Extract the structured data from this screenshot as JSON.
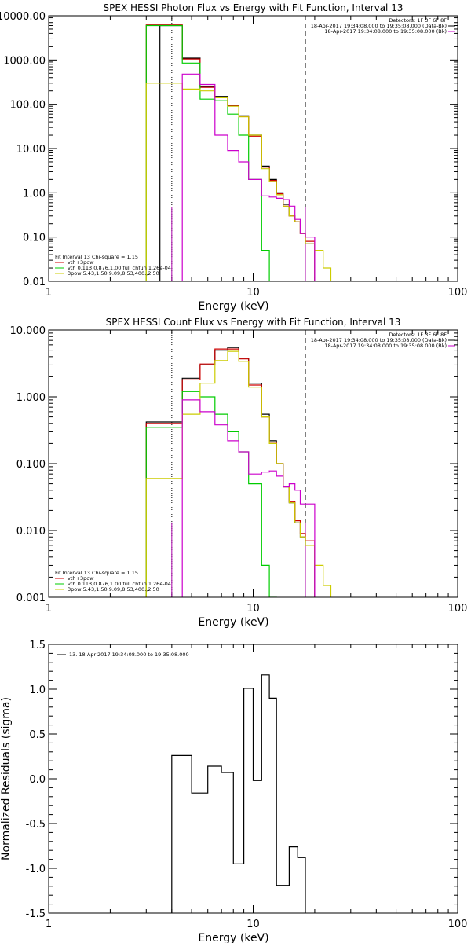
{
  "chart_data": [
    {
      "type": "line",
      "scale": "loglog",
      "title": "SPEX HESSI Photon Flux vs Energy with Fit Function, Interval 13",
      "xlabel": "Energy (keV)",
      "ylabel": "",
      "xlim": [
        1,
        100
      ],
      "ylim": [
        0.01,
        10000
      ],
      "x_ticks": [
        {
          "v": 1,
          "label": "1"
        },
        {
          "v": 10,
          "label": "10"
        },
        {
          "v": 100,
          "label": "100"
        }
      ],
      "y_ticks": [
        {
          "v": 0.01,
          "label": "0.01"
        },
        {
          "v": 0.1,
          "label": "0.10"
        },
        {
          "v": 1,
          "label": "1.00"
        },
        {
          "v": 10,
          "label": "10.00"
        },
        {
          "v": 100,
          "label": "100.00"
        },
        {
          "v": 1000,
          "label": "1000.00"
        },
        {
          "v": 10000,
          "label": "10000.00"
        }
      ],
      "vlines": [
        {
          "x": 4.0,
          "style": "dotted",
          "color": "#000000"
        },
        {
          "x": 18.0,
          "style": "dashed",
          "color": "#000000"
        },
        {
          "x": 4.0,
          "style": "solid",
          "color": "#aa00aa"
        },
        {
          "x": 18.0,
          "style": "solid",
          "color": "#aa00aa"
        }
      ],
      "legend_top_right": [
        {
          "text": "Detectors: 1F 3F 6F 8F",
          "color": "#000000"
        },
        {
          "text": "18-Apr-2017 19:34:08.000 to 19:35:08.000 (Data-Bk)",
          "color": "#000000"
        },
        {
          "text": "18-Apr-2017 19:34:08.000 to 19:35:08.000 (Bk)",
          "color": "#cc00cc"
        }
      ],
      "legend_bottom_left": [
        {
          "text": "Fit Interval 13   Chi-square = 1.15",
          "color": "#000000"
        },
        {
          "text": "vth+3pow",
          "color": "#cc0000"
        },
        {
          "text": "vth 0.113,0.876,1.00  full chfun 1.26e-04",
          "color": "#00cc00"
        },
        {
          "text": "3pow 5.43,1.50,9.09,8.53,400.,2.50",
          "color": "#cccc00"
        }
      ],
      "edges": [
        3.0,
        3.5,
        4.0,
        4.5,
        5.0,
        5.5,
        6.0,
        6.5,
        7.0,
        7.5,
        8.0,
        8.5,
        9.0,
        9.5,
        10.0,
        11.0,
        12.0,
        13.0,
        14.0,
        15.0,
        16.0,
        17.0,
        18.0,
        20.0,
        22.0,
        24.0
      ],
      "series": [
        {
          "color": "#000000",
          "values": [
            null,
            6000,
            6000,
            1100,
            1100,
            250,
            250,
            150,
            150,
            95,
            95,
            55,
            55,
            20,
            20,
            4,
            2,
            1,
            0.55,
            0.3,
            0.22,
            0.12,
            0.07,
            null,
            null
          ]
        },
        {
          "color": "#cc0000",
          "values": [
            6200,
            6200,
            6200,
            1050,
            1050,
            240,
            240,
            145,
            145,
            92,
            92,
            53,
            53,
            19,
            19,
            3.8,
            1.9,
            0.95,
            0.5,
            0.3,
            0.22,
            0.12,
            0.08,
            null,
            null
          ]
        },
        {
          "color": "#00cc00",
          "values": [
            6000,
            6000,
            6000,
            850,
            850,
            130,
            130,
            120,
            120,
            60,
            60,
            20,
            20,
            2,
            2,
            0.05,
            null,
            null,
            null,
            null,
            null,
            null,
            null,
            null,
            null
          ]
        },
        {
          "color": "#cccc00",
          "values": [
            300,
            300,
            300,
            220,
            220,
            200,
            200,
            140,
            140,
            90,
            90,
            52,
            52,
            20,
            20,
            3.5,
            1.8,
            0.9,
            0.5,
            0.3,
            0.22,
            0.12,
            0.07,
            0.05,
            0.02
          ]
        },
        {
          "color": "#cc00cc",
          "values": [
            null,
            null,
            null,
            480,
            480,
            280,
            280,
            20,
            20,
            9,
            9,
            5,
            5,
            2,
            2,
            0.85,
            0.8,
            0.75,
            0.7,
            0.5,
            0.25,
            0.12,
            0.1,
            null,
            null
          ]
        }
      ]
    },
    {
      "type": "line",
      "scale": "loglog",
      "title": "SPEX HESSI Count Flux vs Energy with Fit Function, Interval 13",
      "xlabel": "Energy (keV)",
      "ylabel": "",
      "xlim": [
        1,
        100
      ],
      "ylim": [
        0.001,
        10
      ],
      "x_ticks": [
        {
          "v": 1,
          "label": "1"
        },
        {
          "v": 10,
          "label": "10"
        },
        {
          "v": 100,
          "label": "100"
        }
      ],
      "y_ticks": [
        {
          "v": 0.001,
          "label": "0.001"
        },
        {
          "v": 0.01,
          "label": "0.010"
        },
        {
          "v": 0.1,
          "label": "0.100"
        },
        {
          "v": 1,
          "label": "1.000"
        },
        {
          "v": 10,
          "label": "10.000"
        }
      ],
      "vlines": [
        {
          "x": 4.0,
          "style": "dotted",
          "color": "#000000"
        },
        {
          "x": 18.0,
          "style": "dashed",
          "color": "#000000"
        },
        {
          "x": 4.0,
          "style": "solid",
          "color": "#aa00aa"
        },
        {
          "x": 18.0,
          "style": "solid",
          "color": "#aa00aa"
        }
      ],
      "legend_top_right": [
        {
          "text": "Detectors: 1F 3F 6F 8F",
          "color": "#000000"
        },
        {
          "text": "18-Apr-2017 19:34:08.000 to 19:35:08.000 (Data-Bk)",
          "color": "#000000"
        },
        {
          "text": "18-Apr-2017 19:34:08.000 to 19:35:08.000 (Bk)",
          "color": "#cc00cc"
        }
      ],
      "legend_bottom_left": [
        {
          "text": "Fit Interval 13   Chi-square = 1.15",
          "color": "#000000"
        },
        {
          "text": "vth+3pow",
          "color": "#cc0000"
        },
        {
          "text": "vth 0.113,0.876,1.00  full chfun 1.26e-04",
          "color": "#00cc00"
        },
        {
          "text": "3pow 5.43,1.50,9.09,8.53,400.,2.50",
          "color": "#cccc00"
        }
      ],
      "edges": [
        3.0,
        3.5,
        4.0,
        4.5,
        5.0,
        5.5,
        6.0,
        6.5,
        7.0,
        7.5,
        8.0,
        8.5,
        9.0,
        9.5,
        10.0,
        11.0,
        12.0,
        13.0,
        14.0,
        15.0,
        16.0,
        17.0,
        18.0,
        20.0,
        22.0,
        24.0
      ],
      "series": [
        {
          "color": "#000000",
          "values": [
            0.42,
            0.42,
            0.42,
            1.9,
            1.9,
            3.0,
            3.0,
            5.0,
            5.0,
            5.5,
            5.5,
            3.8,
            3.8,
            1.6,
            1.6,
            0.55,
            0.22,
            0.1,
            0.045,
            0.026,
            0.013,
            0.008,
            0.006,
            null,
            null
          ]
        },
        {
          "color": "#cc0000",
          "values": [
            0.4,
            0.4,
            0.4,
            1.8,
            1.8,
            3.1,
            3.1,
            5.2,
            5.2,
            5.2,
            5.2,
            3.7,
            3.7,
            1.5,
            1.5,
            0.5,
            0.21,
            0.1,
            0.045,
            0.027,
            0.014,
            0.009,
            0.007,
            null,
            null
          ]
        },
        {
          "color": "#00cc00",
          "values": [
            0.35,
            0.35,
            0.35,
            1.2,
            1.2,
            1.0,
            1.0,
            0.55,
            0.55,
            0.3,
            0.3,
            0.15,
            0.15,
            0.05,
            0.05,
            0.003,
            0.001,
            null,
            null,
            null,
            null,
            null,
            null,
            null,
            null
          ]
        },
        {
          "color": "#cccc00",
          "values": [
            0.06,
            0.06,
            0.06,
            0.55,
            0.55,
            1.6,
            1.6,
            3.5,
            3.5,
            4.8,
            4.8,
            3.4,
            3.4,
            1.4,
            1.4,
            0.5,
            0.2,
            0.1,
            0.045,
            0.026,
            0.013,
            0.008,
            0.006,
            0.003,
            0.0015
          ]
        },
        {
          "color": "#cc00cc",
          "values": [
            null,
            null,
            null,
            0.9,
            0.9,
            0.6,
            0.6,
            0.38,
            0.38,
            0.22,
            0.22,
            0.15,
            0.15,
            0.07,
            0.07,
            0.075,
            0.078,
            0.065,
            0.045,
            0.05,
            0.04,
            0.025,
            0.025,
            null,
            null
          ]
        }
      ]
    },
    {
      "type": "line",
      "scale": "semilogx",
      "title": "",
      "xlabel": "Energy (keV)",
      "ylabel": "Normalized Residuals (sigma)",
      "xlim": [
        1,
        100
      ],
      "ylim": [
        -1.5,
        1.5
      ],
      "x_ticks": [
        {
          "v": 1,
          "label": "1"
        },
        {
          "v": 10,
          "label": "10"
        },
        {
          "v": 100,
          "label": "100"
        }
      ],
      "y_ticks": [
        {
          "v": -1.5,
          "label": "-1.5"
        },
        {
          "v": -1.0,
          "label": "-1.0"
        },
        {
          "v": -0.5,
          "label": "-0.5"
        },
        {
          "v": 0.0,
          "label": "0.0"
        },
        {
          "v": 0.5,
          "label": "0.5"
        },
        {
          "v": 1.0,
          "label": "1.0"
        },
        {
          "v": 1.5,
          "label": "1.5"
        }
      ],
      "legend_top_left": [
        {
          "text": "13. 18-Apr-2017 19:34:08.000 to 19:35:08.000",
          "color": "#000000"
        }
      ],
      "edges": [
        4.0,
        5.0,
        6.0,
        7.0,
        8.0,
        9.0,
        10.0,
        11.0,
        12.0,
        13.0,
        15.0,
        16.5,
        18.0
      ],
      "series": [
        {
          "color": "#000000",
          "values": [
            0.26,
            -0.16,
            0.14,
            0.07,
            -0.95,
            1.01,
            -0.02,
            1.16,
            0.9,
            -1.19,
            -0.76,
            -0.88
          ]
        }
      ]
    }
  ]
}
